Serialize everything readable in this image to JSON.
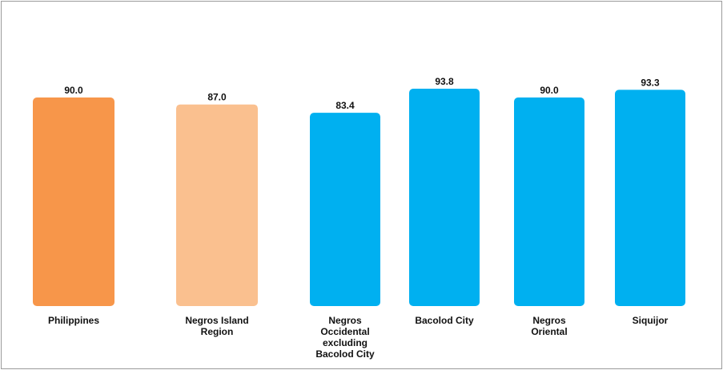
{
  "chart_data": {
    "type": "bar",
    "categories": [
      [
        "Philippines"
      ],
      [
        "Negros Island",
        "Region"
      ],
      [
        "Negros",
        "Occidental",
        "excluding",
        "Bacolod City"
      ],
      [
        "Bacolod City"
      ],
      [
        "Negros",
        "Oriental"
      ],
      [
        "Siquijor"
      ]
    ],
    "values": [
      90.0,
      87.0,
      83.4,
      93.8,
      90.0,
      93.3
    ],
    "value_labels": [
      "90.0",
      "87.0",
      "83.4",
      "93.8",
      "90.0",
      "93.3"
    ],
    "colors": [
      "#F7964A",
      "#FAC08F",
      "#00B0F0",
      "#00B0F0",
      "#00B0F0",
      "#00B0F0"
    ],
    "title": "",
    "xlabel": "",
    "ylabel": "",
    "ylim": [
      0,
      100
    ],
    "grid": false,
    "legend": "none"
  }
}
